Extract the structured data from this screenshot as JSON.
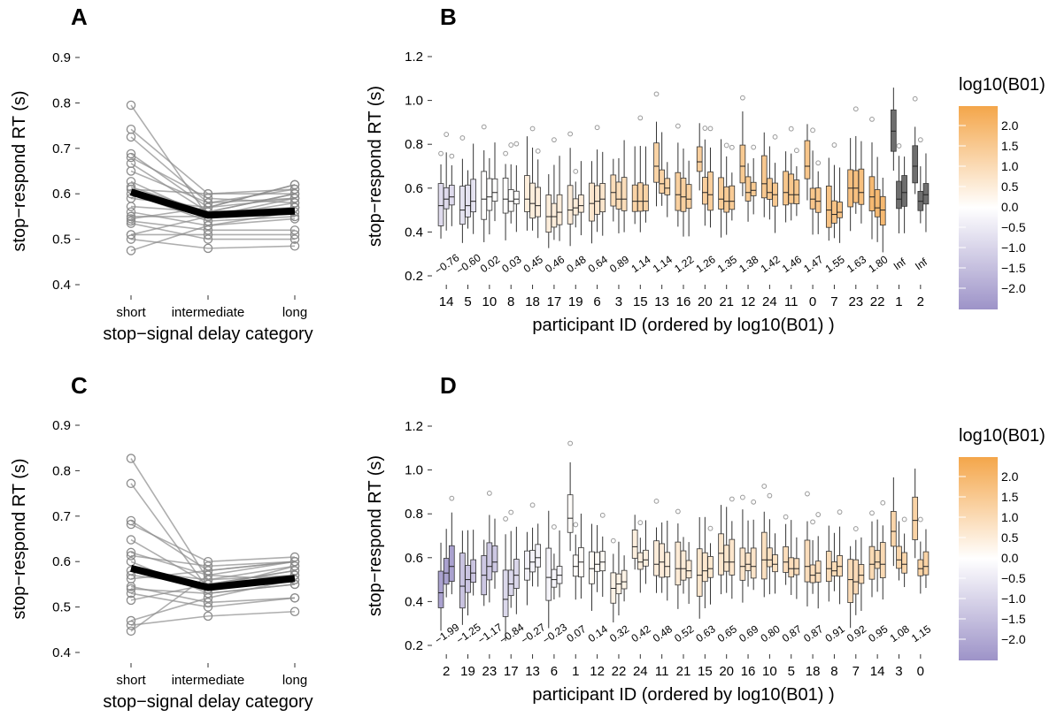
{
  "colors": {
    "orange": "#F4A64A",
    "purple": "#9D93C8",
    "neutral": "#FFFFFF",
    "inf": "#6E6E6E",
    "mean_line": "#000000",
    "participant_line": "#8C8C8C"
  },
  "legend": {
    "title": "log10(B01)",
    "ticks": [
      "2.0",
      "1.5",
      "1.0",
      "0.5",
      "0.0",
      "−0.5",
      "−1.0",
      "−1.5",
      "−2.0"
    ]
  },
  "chart_data": [
    {
      "panel": "A",
      "type": "line",
      "xlabel": "stop−signal delay category",
      "ylabel": "stop−respond RT (s)",
      "categories": [
        "short",
        "intermediate",
        "long"
      ],
      "ylim": [
        0.4,
        0.9
      ],
      "yticks": [
        "0.4",
        "0.5",
        "0.6",
        "0.7",
        "0.8",
        "0.9"
      ],
      "mean": [
        0.604,
        0.553,
        0.562
      ],
      "participants": [
        [
          0.795,
          0.55,
          0.57
        ],
        [
          0.742,
          0.6,
          0.6
        ],
        [
          0.725,
          0.58,
          0.61
        ],
        [
          0.688,
          0.57,
          0.62
        ],
        [
          0.68,
          0.59,
          0.58
        ],
        [
          0.667,
          0.56,
          0.6
        ],
        [
          0.65,
          0.58,
          0.59
        ],
        [
          0.627,
          0.55,
          0.58
        ],
        [
          0.615,
          0.56,
          0.57
        ],
        [
          0.61,
          0.6,
          0.61
        ],
        [
          0.6,
          0.54,
          0.55
        ],
        [
          0.59,
          0.57,
          0.59
        ],
        [
          0.572,
          0.56,
          0.6
        ],
        [
          0.56,
          0.53,
          0.56
        ],
        [
          0.55,
          0.55,
          0.57
        ],
        [
          0.545,
          0.57,
          0.62
        ],
        [
          0.54,
          0.52,
          0.52
        ],
        [
          0.535,
          0.5,
          0.5
        ],
        [
          0.51,
          0.51,
          0.51
        ],
        [
          0.51,
          0.55,
          0.59
        ],
        [
          0.5,
          0.48,
          0.485
        ],
        [
          0.475,
          0.53,
          0.545
        ]
      ]
    },
    {
      "panel": "B",
      "type": "box",
      "xlabel": "participant ID (ordered by log10(B01) )",
      "ylabel": "stop−respond RT (s)",
      "ylim": [
        0.2,
        1.2
      ],
      "yticks": [
        "0.2",
        "0.4",
        "0.6",
        "0.8",
        "1.0",
        "1.2"
      ],
      "participants": [
        "14",
        "5",
        "10",
        "8",
        "18",
        "17",
        "19",
        "6",
        "3",
        "15",
        "13",
        "16",
        "20",
        "21",
        "12",
        "24",
        "11",
        "0",
        "7",
        "23",
        "22",
        "1",
        "2"
      ],
      "bf_labels": [
        "−0.76",
        "−0.60",
        "0.02",
        "0.03",
        "0.45",
        "0.46",
        "0.48",
        "0.64",
        "0.89",
        "1.14",
        "1.14",
        "1.22",
        "1.26",
        "1.35",
        "1.38",
        "1.42",
        "1.46",
        "1.47",
        "1.55",
        "1.63",
        "1.80",
        "Inf",
        "Inf"
      ],
      "bf_values": [
        -0.76,
        -0.6,
        0.02,
        0.03,
        0.45,
        0.46,
        0.48,
        0.64,
        0.89,
        1.14,
        1.14,
        1.22,
        1.26,
        1.35,
        1.38,
        1.42,
        1.46,
        1.47,
        1.55,
        1.63,
        1.8,
        null,
        null
      ],
      "medians": [
        [
          0.52,
          0.55,
          0.56
        ],
        [
          0.5,
          0.52,
          0.54
        ],
        [
          0.55,
          0.56,
          0.58
        ],
        [
          0.55,
          0.54,
          0.55
        ],
        [
          0.55,
          0.53,
          0.52
        ],
        [
          0.47,
          0.47,
          0.49
        ],
        [
          0.5,
          0.51,
          0.52
        ],
        [
          0.53,
          0.54,
          0.55
        ],
        [
          0.58,
          0.55,
          0.55
        ],
        [
          0.54,
          0.54,
          0.54
        ],
        [
          0.7,
          0.62,
          0.6
        ],
        [
          0.57,
          0.56,
          0.55
        ],
        [
          0.72,
          0.58,
          0.57
        ],
        [
          0.55,
          0.54,
          0.54
        ],
        [
          0.7,
          0.58,
          0.59
        ],
        [
          0.62,
          0.58,
          0.57
        ],
        [
          0.58,
          0.57,
          0.57
        ],
        [
          0.7,
          0.55,
          0.54
        ],
        [
          0.5,
          0.48,
          0.49
        ],
        [
          0.6,
          0.6,
          0.58
        ],
        [
          0.56,
          0.51,
          0.5
        ],
        [
          0.86,
          0.55,
          0.58
        ],
        [
          0.7,
          0.54,
          0.57
        ]
      ]
    },
    {
      "panel": "C",
      "type": "line",
      "xlabel": "stop−signal delay category",
      "ylabel": "stop−respond RT (s)",
      "categories": [
        "short",
        "intermediate",
        "long"
      ],
      "ylim": [
        0.4,
        0.9
      ],
      "yticks": [
        "0.4",
        "0.5",
        "0.6",
        "0.7",
        "0.8",
        "0.9"
      ],
      "mean": [
        0.585,
        0.543,
        0.563
      ],
      "participants": [
        [
          0.827,
          0.56,
          0.57
        ],
        [
          0.772,
          0.54,
          0.59
        ],
        [
          0.69,
          0.58,
          0.6
        ],
        [
          0.682,
          0.6,
          0.61
        ],
        [
          0.648,
          0.55,
          0.58
        ],
        [
          0.62,
          0.57,
          0.56
        ],
        [
          0.613,
          0.59,
          0.6
        ],
        [
          0.6,
          0.53,
          0.55
        ],
        [
          0.58,
          0.56,
          0.59
        ],
        [
          0.57,
          0.55,
          0.57
        ],
        [
          0.562,
          0.58,
          0.6
        ],
        [
          0.545,
          0.51,
          0.52
        ],
        [
          0.54,
          0.53,
          0.55
        ],
        [
          0.53,
          0.5,
          0.52
        ],
        [
          0.515,
          0.55,
          0.58
        ],
        [
          0.47,
          0.52,
          0.56
        ],
        [
          0.46,
          0.48,
          0.49
        ],
        [
          0.447,
          0.57,
          0.6
        ]
      ]
    },
    {
      "panel": "D",
      "type": "box",
      "xlabel": "participant ID (ordered by log10(B01) )",
      "ylabel": "stop−respond RT (s)",
      "ylim": [
        0.2,
        1.2
      ],
      "yticks": [
        "0.2",
        "0.4",
        "0.6",
        "0.8",
        "1.0",
        "1.2"
      ],
      "participants": [
        "2",
        "19",
        "23",
        "17",
        "13",
        "6",
        "1",
        "12",
        "22",
        "24",
        "11",
        "21",
        "15",
        "20",
        "16",
        "10",
        "5",
        "18",
        "8",
        "7",
        "14",
        "3",
        "0"
      ],
      "bf_labels": [
        "−1.99",
        "−1.25",
        "−1.17",
        "−0.84",
        "−0.27",
        "−0.23",
        "0.07",
        "0.14",
        "0.32",
        "0.42",
        "0.48",
        "0.52",
        "0.63",
        "0.65",
        "0.69",
        "0.80",
        "0.87",
        "0.87",
        "0.91",
        "0.92",
        "0.95",
        "1.08",
        "1.15"
      ],
      "bf_values": [
        -1.99,
        -1.25,
        -1.17,
        -0.84,
        -0.27,
        -0.23,
        0.07,
        0.14,
        0.32,
        0.42,
        0.48,
        0.52,
        0.63,
        0.65,
        0.69,
        0.8,
        0.87,
        0.87,
        0.91,
        0.92,
        0.95,
        1.08,
        1.15
      ],
      "medians": [
        [
          0.44,
          0.53,
          0.56
        ],
        [
          0.47,
          0.5,
          0.53
        ],
        [
          0.52,
          0.56,
          0.58
        ],
        [
          0.41,
          0.48,
          0.52
        ],
        [
          0.55,
          0.58,
          0.6
        ],
        [
          0.51,
          0.5,
          0.52
        ],
        [
          0.78,
          0.56,
          0.58
        ],
        [
          0.55,
          0.57,
          0.58
        ],
        [
          0.46,
          0.48,
          0.49
        ],
        [
          0.65,
          0.58,
          0.59
        ],
        [
          0.57,
          0.58,
          0.56
        ],
        [
          0.55,
          0.55,
          0.54
        ],
        [
          0.52,
          0.54,
          0.55
        ],
        [
          0.62,
          0.58,
          0.58
        ],
        [
          0.56,
          0.57,
          0.56
        ],
        [
          0.59,
          0.59,
          0.57
        ],
        [
          0.58,
          0.55,
          0.55
        ],
        [
          0.56,
          0.52,
          0.53
        ],
        [
          0.55,
          0.54,
          0.56
        ],
        [
          0.5,
          0.49,
          0.52
        ],
        [
          0.57,
          0.58,
          0.57
        ],
        [
          0.72,
          0.59,
          0.57
        ],
        [
          0.77,
          0.55,
          0.56
        ]
      ]
    }
  ]
}
